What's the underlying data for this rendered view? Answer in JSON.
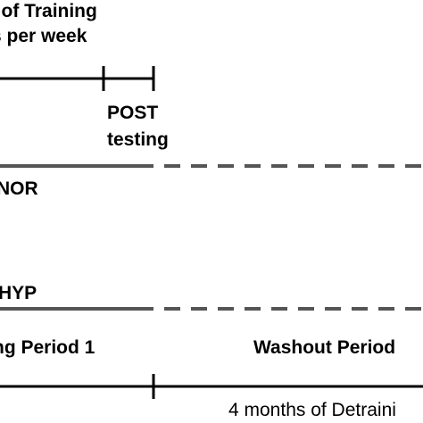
{
  "training_header": {
    "line1": "s of Training",
    "line2": "s per week"
  },
  "post_testing": {
    "line1": "POST",
    "line2": "testing"
  },
  "groups": {
    "nor": "NOR",
    "hyp": "HYP"
  },
  "periods": {
    "period1": "ng Period 1",
    "washout": "Washout Period",
    "detraining": "4 months of Detraini"
  },
  "colors": {
    "timeline": "#000000",
    "group_line": "#555555",
    "text": "#000000"
  }
}
